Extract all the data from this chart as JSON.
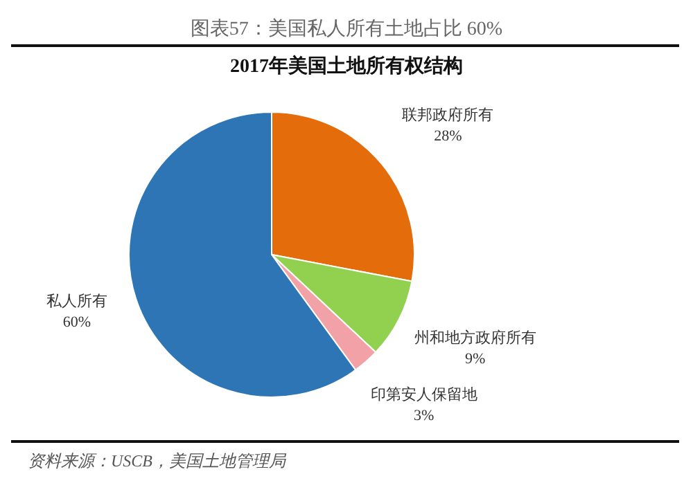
{
  "chart_data": {
    "type": "pie",
    "title": "图表57：美国私人所有土地占比 60%",
    "subtitle": "2017年美国土地所有权结构",
    "categories": [
      "联邦政府所有",
      "州和地方政府所有",
      "印第安人保留地",
      "私人所有"
    ],
    "values": [
      28,
      9,
      3,
      60
    ],
    "colors": [
      "#e46c0a",
      "#92d050",
      "#f2a2a6",
      "#2e75b6"
    ],
    "value_labels": [
      "28%",
      "9%",
      "3%",
      "60%"
    ],
    "annotations": [
      "资料来源：USCB，美国土地管理局"
    ]
  }
}
